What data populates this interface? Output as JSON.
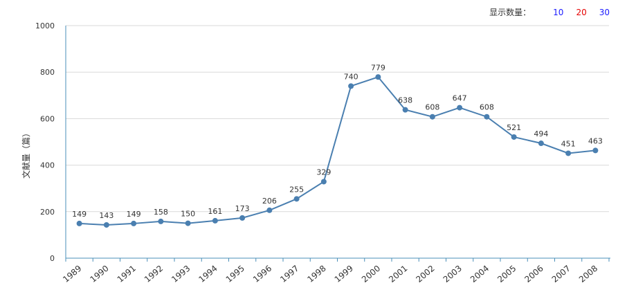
{
  "controls": {
    "display_count_label": "显示数量：",
    "options": [
      {
        "label": "10",
        "color": "#1a1aff"
      },
      {
        "label": "20",
        "color": "#e60000"
      },
      {
        "label": "30",
        "color": "#1a1aff"
      }
    ]
  },
  "chart_data": {
    "type": "line",
    "ylabel": "文献量（篇）",
    "xlabel": "",
    "title": "",
    "ylim": [
      0,
      1000
    ],
    "yticks": [
      0,
      200,
      400,
      600,
      800,
      1000
    ],
    "categories": [
      "1989",
      "1990",
      "1991",
      "1992",
      "1993",
      "1994",
      "1995",
      "1996",
      "1997",
      "1998",
      "1999",
      "2000",
      "2001",
      "2002",
      "2003",
      "2004",
      "2005",
      "2006",
      "2007",
      "2008"
    ],
    "series": [
      {
        "values": [
          149,
          143,
          149,
          158,
          150,
          161,
          173,
          206,
          255,
          329,
          740,
          779,
          638,
          608,
          647,
          608,
          521,
          494,
          451,
          463
        ],
        "color": "#4a7fb0"
      }
    ],
    "grid": true,
    "data_labels": true
  }
}
